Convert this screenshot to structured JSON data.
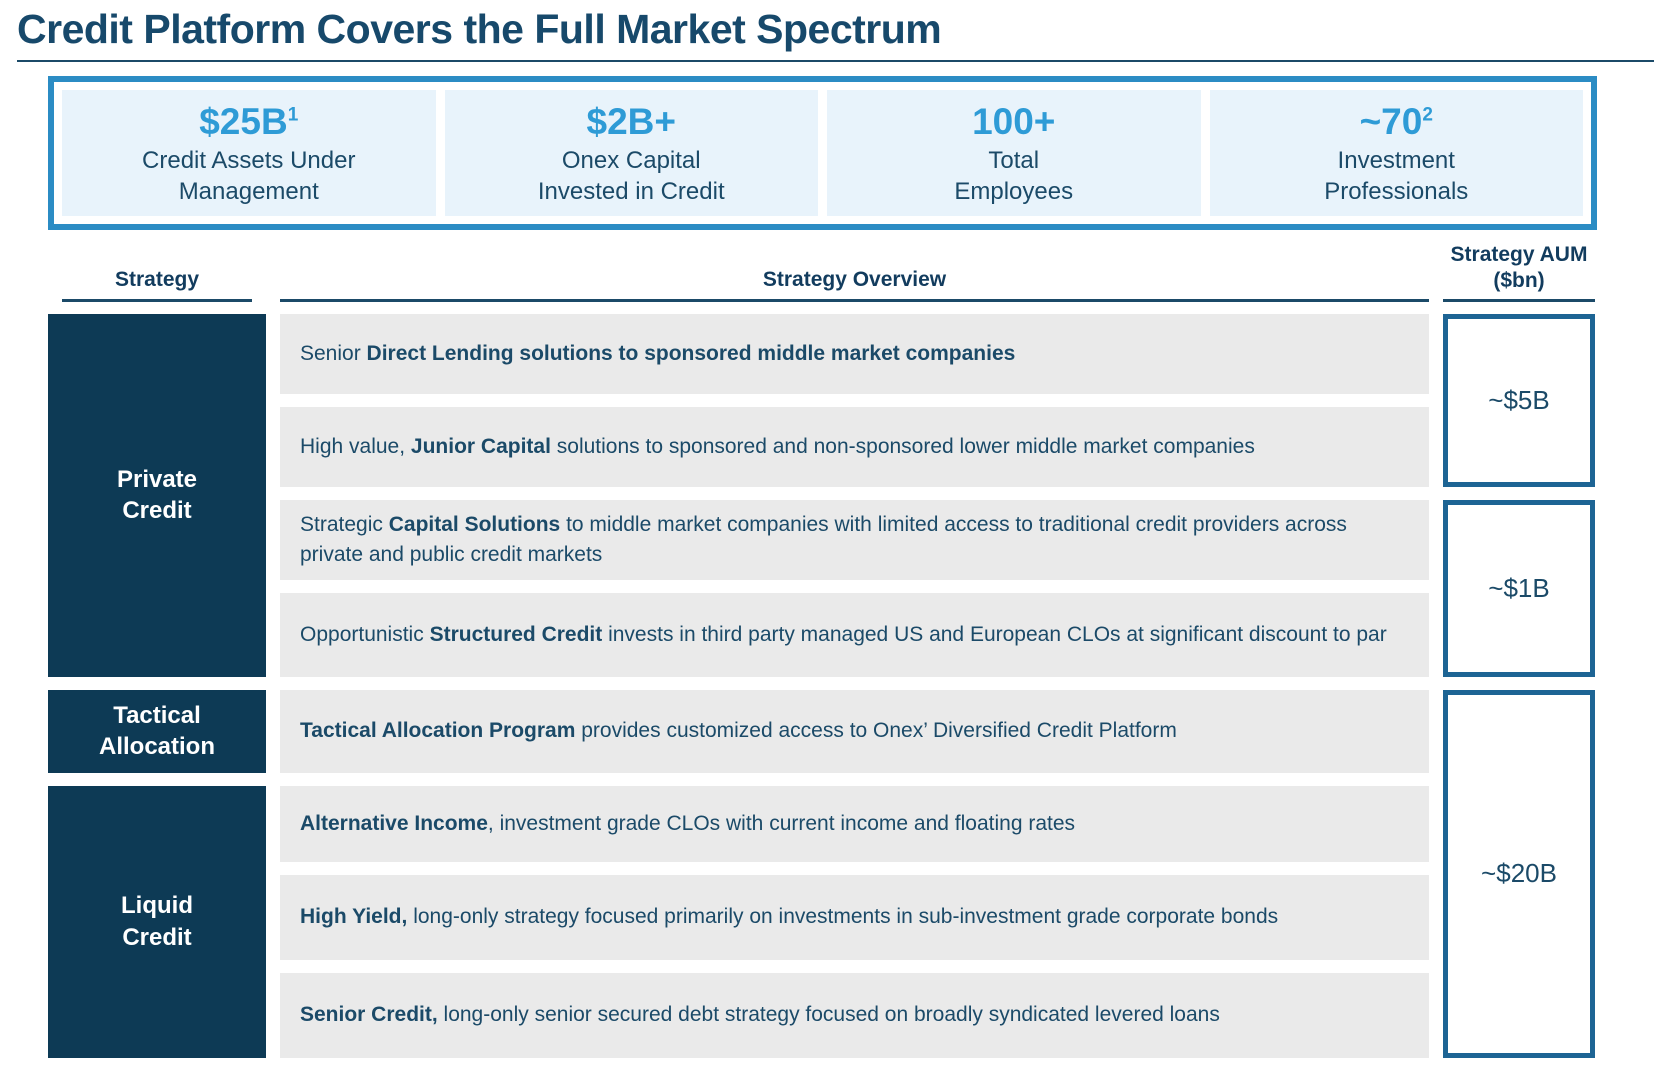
{
  "title": "Credit Platform Covers the Full Market Spectrum",
  "stats": {
    "items": [
      {
        "value": "$25B",
        "sup": "1",
        "label_line1": "Credit Assets Under",
        "label_line2": "Management"
      },
      {
        "value": "$2B+",
        "sup": "",
        "label_line1": "Onex Capital",
        "label_line2": "Invested in Credit"
      },
      {
        "value": "100+",
        "sup": "",
        "label_line1": "Total",
        "label_line2": "Employees"
      },
      {
        "value": "~70",
        "sup": "2",
        "label_line1": "Investment",
        "label_line2": "Professionals"
      }
    ]
  },
  "table": {
    "headers": {
      "strategy": "Strategy",
      "overview": "Strategy Overview",
      "aum_line1": "Strategy AUM",
      "aum_line2": "($bn)"
    },
    "strategies": [
      {
        "id": "private-credit",
        "label_lines": [
          "Private",
          "Credit"
        ],
        "rows": [
          1,
          4
        ]
      },
      {
        "id": "tactical-allocation",
        "label_lines": [
          "Tactical",
          "Allocation"
        ],
        "rows": [
          5,
          5
        ]
      },
      {
        "id": "liquid-credit",
        "label_lines": [
          "Liquid",
          "Credit"
        ],
        "rows": [
          6,
          8
        ]
      }
    ],
    "rows": [
      {
        "segments": [
          {
            "text": "Senior ",
            "bold": false
          },
          {
            "text": "Direct Lending solutions to sponsored middle market companies",
            "bold": true
          }
        ]
      },
      {
        "segments": [
          {
            "text": "High value, ",
            "bold": false
          },
          {
            "text": "Junior Capital",
            "bold": true
          },
          {
            "text": " solutions to sponsored and non-sponsored lower middle market companies",
            "bold": false
          }
        ]
      },
      {
        "segments": [
          {
            "text": "Strategic ",
            "bold": false
          },
          {
            "text": "Capital Solutions",
            "bold": true
          },
          {
            "text": " to middle market companies with limited access to traditional credit providers across private and public credit markets",
            "bold": false
          }
        ]
      },
      {
        "segments": [
          {
            "text": "Opportunistic ",
            "bold": false
          },
          {
            "text": "Structured Credit",
            "bold": true
          },
          {
            "text": " invests in third party managed US and European CLOs at significant discount to par",
            "bold": false
          }
        ]
      },
      {
        "segments": [
          {
            "text": "Tactical Allocation Program",
            "bold": true
          },
          {
            "text": " provides customized access to Onex’ Diversified Credit Platform",
            "bold": false
          }
        ]
      },
      {
        "segments": [
          {
            "text": "Alternative Income",
            "bold": true
          },
          {
            "text": ", investment grade CLOs with current income and floating rates",
            "bold": false
          }
        ]
      },
      {
        "segments": [
          {
            "text": "High Yield,",
            "bold": true
          },
          {
            "text": " long-only strategy focused primarily on investments in sub-investment grade corporate bonds",
            "bold": false
          }
        ]
      },
      {
        "segments": [
          {
            "text": "Senior Credit,",
            "bold": true
          },
          {
            "text": " long-only senior secured debt strategy focused on broadly syndicated levered loans",
            "bold": false
          }
        ]
      }
    ],
    "aum": [
      {
        "value": "~$5B",
        "rows": [
          1,
          2
        ]
      },
      {
        "value": "~$1B",
        "rows": [
          3,
          4
        ]
      },
      {
        "value": "~$20B",
        "rows": [
          5,
          8
        ]
      }
    ]
  },
  "colors": {
    "navy_text": "#1b4a68",
    "title_navy": "#17496b",
    "strategy_box_navy": "#0d3a55",
    "accent_blue": "#2e9bd6",
    "stats_border_blue": "#2b8cc4",
    "stats_fill_light_blue": "#e8f3fb",
    "row_gray": "#eaeaea",
    "aum_border_blue": "#1d6494"
  }
}
